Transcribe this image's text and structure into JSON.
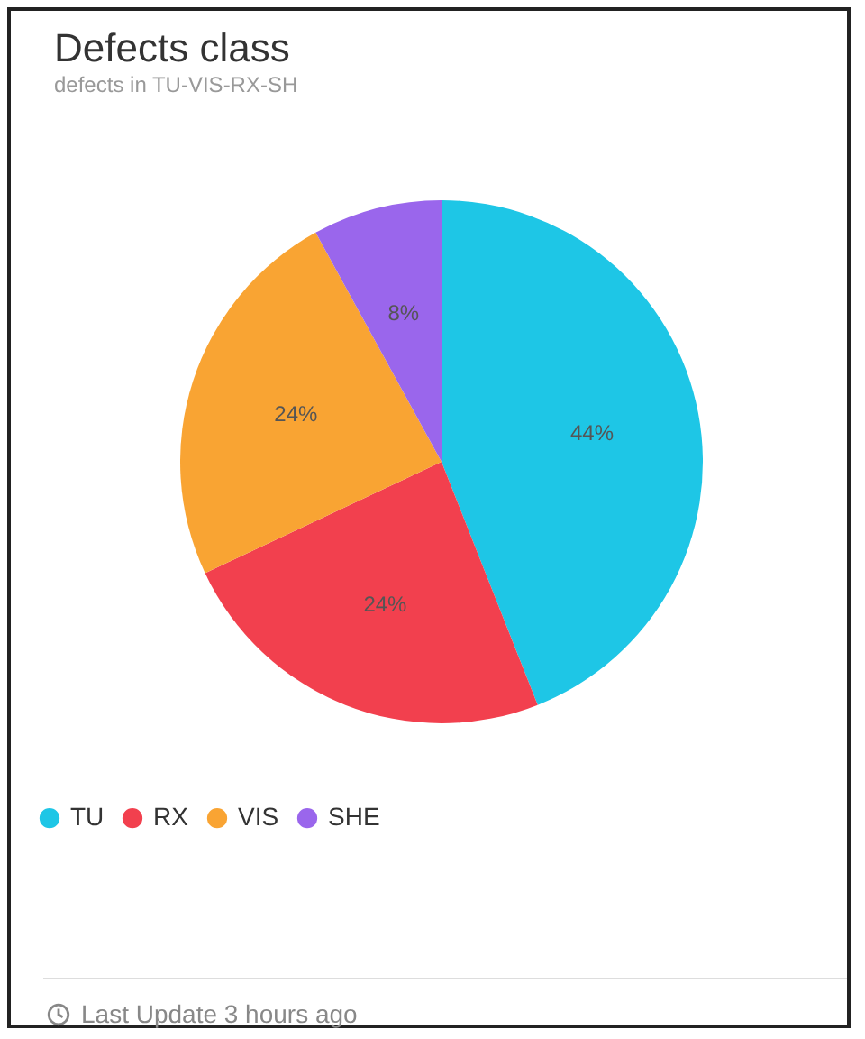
{
  "chart_data": {
    "type": "pie",
    "title": "Defects class",
    "subtitle": "defects in TU-VIS-RX-SH",
    "categories": [
      "TU",
      "RX",
      "VIS",
      "SHE"
    ],
    "values": [
      44,
      24,
      24,
      8
    ],
    "colors": [
      "#1ec6e6",
      "#f2404e",
      "#f9a433",
      "#9a66ec"
    ],
    "value_labels": [
      "44%",
      "24%",
      "24%",
      "8%"
    ],
    "legend": "bottom",
    "annotations": [
      "Last Update 3 hours ago"
    ]
  }
}
